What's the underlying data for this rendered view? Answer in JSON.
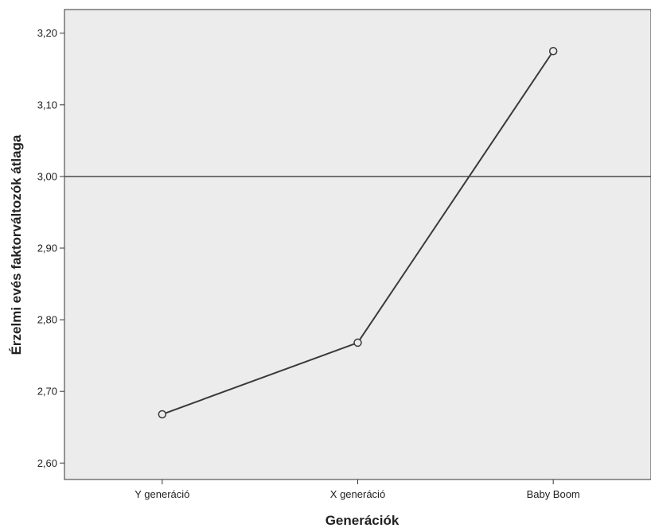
{
  "chart_data": {
    "type": "line",
    "title": "",
    "xlabel": "Generációk",
    "ylabel": "Érzelmi evés faktorváltozók átlaga",
    "categories": [
      "Y generáció",
      "X generáció",
      "Baby Boom"
    ],
    "series": [
      {
        "values": [
          2.668,
          2.768,
          3.175
        ]
      }
    ],
    "y_ticks": [
      "2,60",
      "2,70",
      "2,80",
      "2,90",
      "3,00",
      "3,10",
      "3,20"
    ],
    "y_tick_values": [
      2.6,
      2.7,
      2.8,
      2.9,
      3.0,
      3.1,
      3.2
    ],
    "ylim": [
      2.577,
      3.233
    ],
    "reference_line": 3.0,
    "grid": false,
    "plot_background": "#ececec",
    "line_color": "#3a3a3a"
  }
}
